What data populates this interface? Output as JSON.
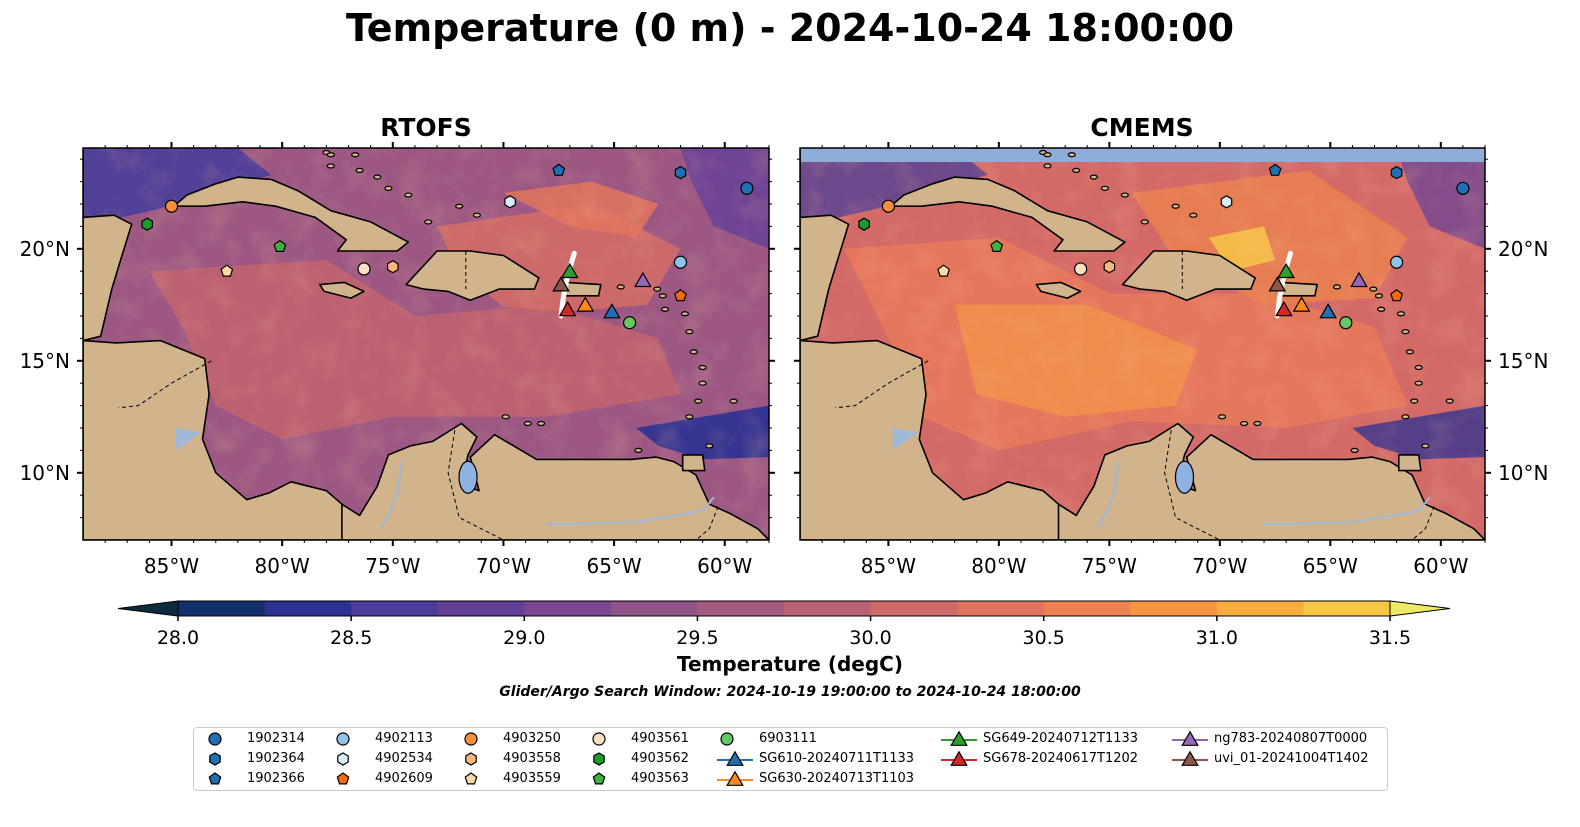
{
  "title": "Temperature (0 m) - 2024-10-24 18:00:00",
  "panels": [
    {
      "title": "RTOFS",
      "ocean_variant": "rtofs"
    },
    {
      "title": "CMEMS",
      "ocean_variant": "cmems"
    }
  ],
  "axes": {
    "lon_ticks": [
      "85°W",
      "80°W",
      "75°W",
      "70°W",
      "65°W",
      "60°W"
    ],
    "lon_values": [
      -85,
      -80,
      -75,
      -70,
      -65,
      -60
    ],
    "lat_ticks": [
      "20°N",
      "15°N",
      "10°N"
    ],
    "lat_values": [
      20,
      15,
      10
    ],
    "lon_range": [
      -89,
      -58
    ],
    "lat_range": [
      7,
      24.5
    ]
  },
  "colorbar": {
    "label": "Temperature (degC)",
    "ticks": [
      "28.0",
      "28.5",
      "29.0",
      "29.5",
      "30.0",
      "30.5",
      "31.0",
      "31.5"
    ],
    "tick_values": [
      28.0,
      28.5,
      29.0,
      29.5,
      30.0,
      30.5,
      31.0,
      31.5
    ],
    "range": [
      28.0,
      31.5
    ],
    "extend": "both",
    "colors": [
      "#0d2b3c",
      "#132f6b",
      "#2b3294",
      "#4c3c9c",
      "#633f99",
      "#794891",
      "#8f5388",
      "#a45a7f",
      "#ba6175",
      "#cf6a69",
      "#e1725e",
      "#ee8150",
      "#f59542",
      "#f8ac3d",
      "#f7c646",
      "#eeea62"
    ]
  },
  "search_window": "Glider/Argo Search Window: 2024-10-19 19:00:00 to 2024-10-24 18:00:00",
  "observations": [
    {
      "id": "1902314",
      "marker": "circle",
      "color": "#1f6fb2",
      "lon": -59,
      "lat": 22.7
    },
    {
      "id": "1902364",
      "marker": "hexagon",
      "color": "#1f6fb2",
      "lon": -62,
      "lat": 23.4
    },
    {
      "id": "1902366",
      "marker": "pentagon",
      "color": "#1f6fb2",
      "lon": -67.5,
      "lat": 23.5
    },
    {
      "id": "4902113",
      "marker": "circle",
      "color": "#8fc3ea",
      "lon": -62,
      "lat": 19.4
    },
    {
      "id": "4902534",
      "marker": "hexagon",
      "color": "#d6ecfa",
      "lon": -69.7,
      "lat": 22.1
    },
    {
      "id": "4902609",
      "marker": "pentagon",
      "color": "#f36b0b",
      "lon": -62,
      "lat": 17.9
    },
    {
      "id": "4903250",
      "marker": "circle",
      "color": "#f58f3a",
      "lon": -85,
      "lat": 21.9
    },
    {
      "id": "4903558",
      "marker": "hexagon",
      "color": "#fbb87a",
      "lon": -75,
      "lat": 19.2
    },
    {
      "id": "4903559",
      "marker": "pentagon",
      "color": "#fcd9a7",
      "lon": -82.5,
      "lat": 19
    },
    {
      "id": "4903561",
      "marker": "circle",
      "color": "#fde0c4",
      "lon": -76.3,
      "lat": 19.1
    },
    {
      "id": "4903562",
      "marker": "hexagon",
      "color": "#1b9a2e",
      "lon": -86.1,
      "lat": 21.1
    },
    {
      "id": "4903563",
      "marker": "pentagon",
      "color": "#3fb23f",
      "lon": -80.1,
      "lat": 20.1
    },
    {
      "id": "6903111",
      "marker": "circle",
      "color": "#63c963",
      "lon": -64.3,
      "lat": 16.7
    },
    {
      "id": "SG610-20240711T1133",
      "marker": "triangle",
      "color": "#1f6fb2",
      "lon": -65.1,
      "lat": 17.2
    },
    {
      "id": "SG630-20240713T1103",
      "marker": "triangle",
      "color": "#ff8c1a",
      "lon": -66.3,
      "lat": 17.5
    },
    {
      "id": "SG649-20240712T1133",
      "marker": "triangle",
      "color": "#2ca02c",
      "lon": -67,
      "lat": 19
    },
    {
      "id": "SG678-20240617T1202",
      "marker": "triangle",
      "color": "#d62728",
      "lon": -67.1,
      "lat": 17.3
    },
    {
      "id": "ng783-20240807T0000",
      "marker": "triangle",
      "color": "#9467bd",
      "lon": -63.7,
      "lat": 18.6
    },
    {
      "id": "uvi_01-20241004T1402",
      "marker": "triangle",
      "color": "#8c564b",
      "lon": -67.4,
      "lat": 18.4
    }
  ]
}
